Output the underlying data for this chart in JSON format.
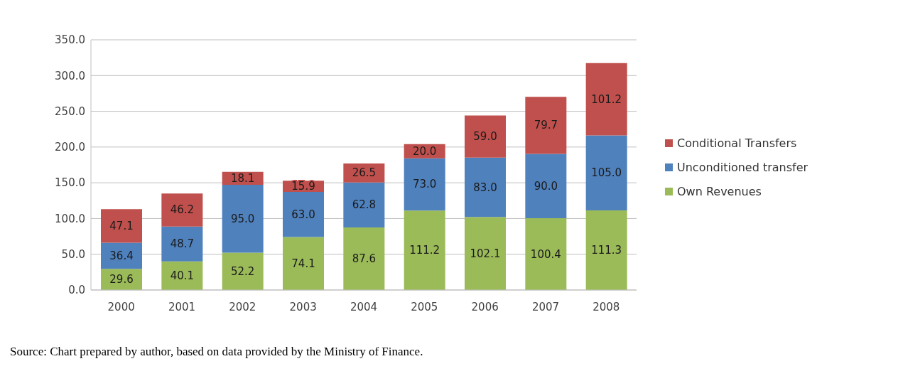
{
  "chart_data": {
    "type": "bar",
    "stacked": true,
    "categories": [
      "2000",
      "2001",
      "2002",
      "2003",
      "2004",
      "2005",
      "2006",
      "2007",
      "2008"
    ],
    "series": [
      {
        "name": "Own Revenues",
        "color": "#9bbb59",
        "values": [
          29.6,
          40.1,
          52.2,
          74.1,
          87.6,
          111.2,
          102.1,
          100.4,
          111.3
        ],
        "value_labels": [
          "29.6",
          "40.1",
          "52.2",
          "74.1",
          "87.6",
          "111.2",
          "102.1",
          "100.4",
          "111.3"
        ]
      },
      {
        "name": "Unconditioned transfer",
        "color": "#4f81bd",
        "values": [
          36.4,
          48.7,
          95.0,
          63.0,
          62.8,
          73.0,
          83.0,
          90.0,
          105.0
        ],
        "value_labels": [
          "36.4",
          "48.7",
          "95.0",
          "63.0",
          "62.8",
          "73.0",
          "83.0",
          "90.0",
          "105.0"
        ]
      },
      {
        "name": "Conditional Transfers",
        "color": "#c0504d",
        "values": [
          47.1,
          46.2,
          18.1,
          15.9,
          26.5,
          20.0,
          59.0,
          79.7,
          101.2
        ],
        "value_labels": [
          "47.1",
          "46.2",
          "18.1",
          "15.9",
          "26.5",
          "20.0",
          "59.0",
          "79.7",
          "101.2"
        ]
      }
    ],
    "ylim": [
      0,
      350
    ],
    "yticks": [
      {
        "value": 0,
        "label": "0.0"
      },
      {
        "value": 50,
        "label": "50.0"
      },
      {
        "value": 100,
        "label": "100.0"
      },
      {
        "value": 150,
        "label": "150.0"
      },
      {
        "value": 200,
        "label": "200.0"
      },
      {
        "value": 250,
        "label": "250.0"
      },
      {
        "value": 300,
        "label": "300.0"
      },
      {
        "value": 350,
        "label": "350.0"
      }
    ],
    "grid": "y",
    "legend": "right",
    "annotations": [
      "Source: Chart prepared by author, based on data provided by the Ministry of Finance."
    ]
  }
}
